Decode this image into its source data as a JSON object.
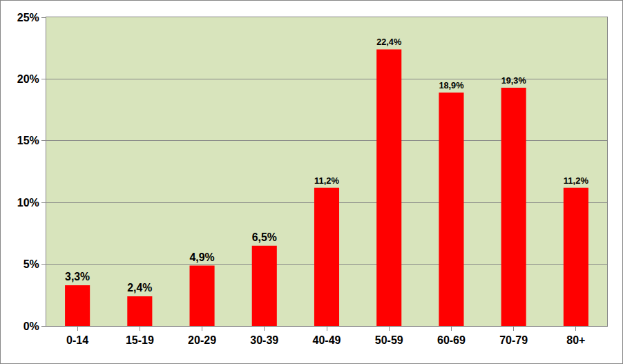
{
  "chart_data": {
    "type": "bar",
    "categories": [
      "0-14",
      "15-19",
      "20-29",
      "30-39",
      "40-49",
      "50-59",
      "60-69",
      "70-79",
      "80+"
    ],
    "values": [
      3.3,
      2.4,
      4.9,
      6.5,
      11.2,
      22.4,
      18.9,
      19.3,
      11.2
    ],
    "value_labels": [
      "3,3%",
      "2,4%",
      "4,9%",
      "6,5%",
      "11,2%",
      "22,4%",
      "18,9%",
      "19,3%",
      "11,2%"
    ],
    "color": "#ff0000",
    "ylim": [
      0,
      25
    ],
    "yticks": [
      {
        "value": 0,
        "label": "0%"
      },
      {
        "value": 5,
        "label": "5%"
      },
      {
        "value": 10,
        "label": "10%"
      },
      {
        "value": 15,
        "label": "15%"
      },
      {
        "value": 20,
        "label": "20%"
      },
      {
        "value": 25,
        "label": "25%"
      }
    ],
    "grid": true,
    "data_labels": true
  }
}
